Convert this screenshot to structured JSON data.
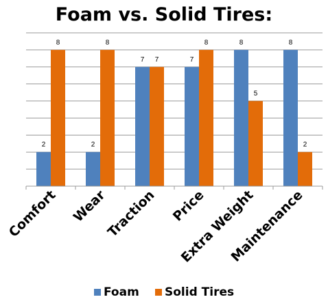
{
  "chart_data": {
    "type": "bar",
    "title": "Foam vs. Solid Tires:",
    "categories": [
      "Comfort",
      "Wear",
      "Traction",
      "Price",
      "Extra Weight",
      "Maintenance"
    ],
    "series": [
      {
        "name": "Foam",
        "values": [
          2,
          2,
          7,
          7,
          8,
          8
        ],
        "color": "#4f81bd"
      },
      {
        "name": "Solid Tires",
        "values": [
          8,
          8,
          7,
          8,
          5,
          2
        ],
        "color": "#e36c09"
      }
    ],
    "ylim": [
      0,
      9
    ],
    "grid": true,
    "legend_position": "bottom",
    "show_data_labels": true
  }
}
